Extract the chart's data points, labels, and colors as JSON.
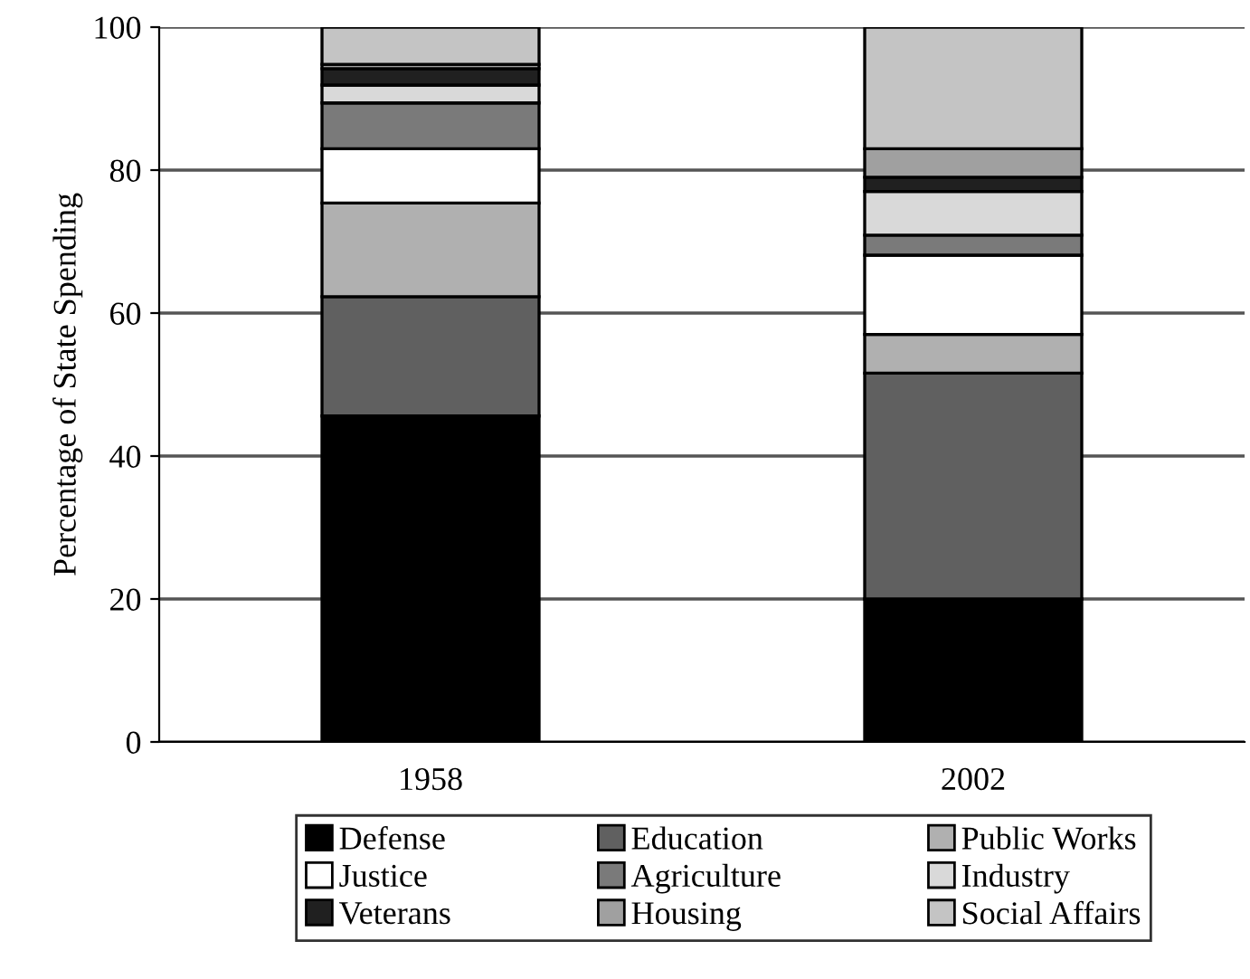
{
  "chart_data": {
    "type": "bar",
    "stacked": true,
    "ylabel": "Percentage of State Spending",
    "categories": [
      "1958",
      "2002"
    ],
    "series": [
      {
        "name": "Defense",
        "color": "#000000",
        "values": [
          45.6,
          20.0
        ]
      },
      {
        "name": "Education",
        "color": "#606060",
        "values": [
          16.7,
          31.6
        ]
      },
      {
        "name": "Public Works",
        "color": "#b0b0b0",
        "values": [
          13.1,
          5.4
        ]
      },
      {
        "name": "Justice",
        "color": "#ffffff",
        "values": [
          7.6,
          11.1
        ]
      },
      {
        "name": "Agriculture",
        "color": "#7a7a7a",
        "values": [
          6.4,
          2.8
        ]
      },
      {
        "name": "Industry",
        "color": "#d9d9d9",
        "values": [
          2.5,
          6.1
        ]
      },
      {
        "name": "Veterans",
        "color": "#202020",
        "values": [
          2.3,
          2.0
        ]
      },
      {
        "name": "Housing",
        "color": "#a0a0a0",
        "values": [
          0.6,
          4.0
        ]
      },
      {
        "name": "Social Affairs",
        "color": "#c4c4c4",
        "values": [
          5.2,
          17.0
        ]
      }
    ],
    "ylim": [
      0,
      100
    ],
    "yticks": [
      0,
      20,
      40,
      60,
      80,
      100
    ],
    "grid": "y",
    "legend": "bottom"
  }
}
